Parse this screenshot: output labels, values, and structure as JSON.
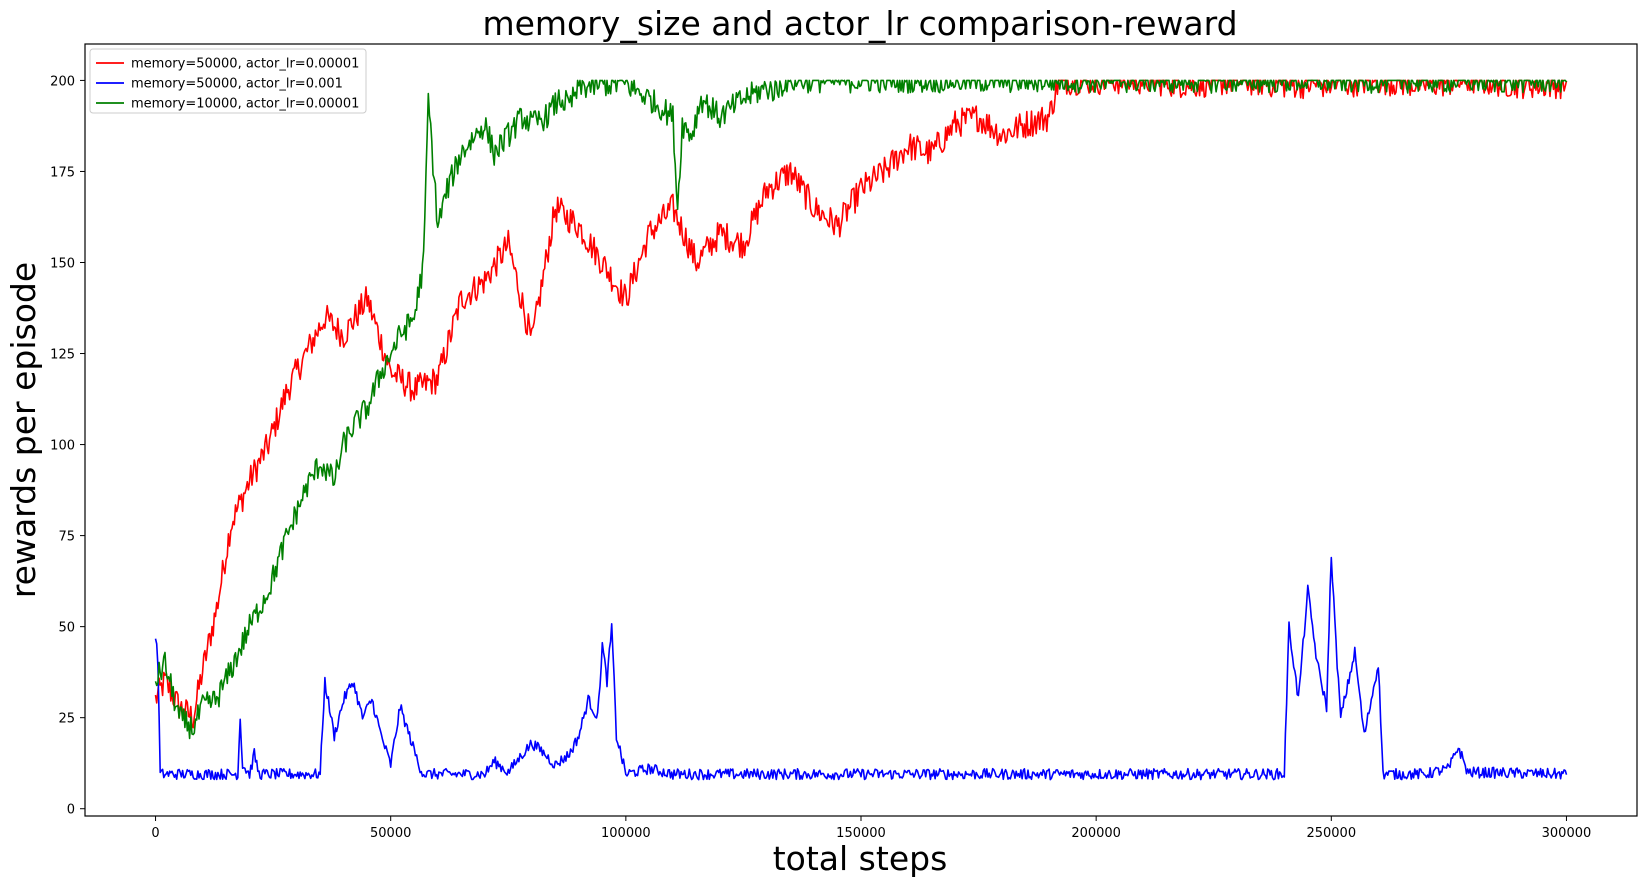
{
  "chart_data": {
    "type": "line",
    "title": "memory_size and actor_lr comparison-reward",
    "xlabel": "total steps",
    "ylabel": "rewards per episode",
    "xlim": [
      -15000,
      315000
    ],
    "ylim": [
      -2,
      210
    ],
    "x_ticks": [
      0,
      50000,
      100000,
      150000,
      200000,
      250000,
      300000
    ],
    "y_ticks": [
      0,
      25,
      50,
      75,
      100,
      125,
      150,
      175,
      200
    ],
    "grid": false,
    "legend_position": "top-left",
    "series": [
      {
        "name": "memory=50000, actor_lr=0.00001",
        "color": "#ff0000",
        "noise": 4,
        "x": [
          0,
          2000,
          5000,
          8000,
          10000,
          13000,
          16000,
          20000,
          24000,
          28000,
          32000,
          36000,
          40000,
          45000,
          50000,
          55000,
          60000,
          65000,
          70000,
          75000,
          80000,
          85000,
          90000,
          95000,
          100000,
          105000,
          110000,
          115000,
          120000,
          125000,
          130000,
          135000,
          140000,
          145000,
          150000,
          155000,
          160000,
          165000,
          170000,
          175000,
          180000,
          185000,
          190000,
          192000,
          200000,
          210000,
          220000,
          230000,
          240000,
          250000,
          260000,
          270000,
          280000,
          290000,
          300000
        ],
        "y": [
          30,
          35,
          28,
          25,
          38,
          55,
          78,
          90,
          100,
          115,
          125,
          135,
          130,
          140,
          120,
          115,
          118,
          140,
          145,
          155,
          128,
          165,
          160,
          150,
          140,
          158,
          165,
          150,
          158,
          155,
          170,
          175,
          165,
          160,
          170,
          175,
          182,
          180,
          188,
          190,
          185,
          188,
          190,
          200,
          200,
          200,
          199,
          200,
          199,
          199,
          200,
          199,
          200,
          199,
          199
        ]
      },
      {
        "name": "memory=50000, actor_lr=0.001",
        "color": "#0000ff",
        "noise": 1.5,
        "x": [
          0,
          500,
          1000,
          2000,
          17500,
          18000,
          18500,
          20000,
          21000,
          22000,
          35000,
          36000,
          38000,
          40000,
          42000,
          44000,
          46000,
          48000,
          50000,
          52000,
          54000,
          56000,
          57000,
          70000,
          72000,
          75000,
          78000,
          80000,
          82000,
          85000,
          88000,
          90000,
          92000,
          94000,
          95000,
          96000,
          97000,
          98000,
          100000,
          105000,
          110000,
          240000,
          241000,
          243000,
          245000,
          247000,
          249000,
          250000,
          251000,
          252000,
          255000,
          257000,
          260000,
          261000,
          270000,
          275000,
          277000,
          279000,
          300000
        ],
        "y": [
          48,
          40,
          9.5,
          9.5,
          9.5,
          25,
          12,
          9.5,
          15,
          9.5,
          9.5,
          35,
          20,
          30,
          35,
          25,
          30,
          20,
          12,
          28,
          20,
          12,
          9.5,
          9.5,
          13,
          10,
          15,
          18,
          16,
          12,
          15,
          20,
          30,
          25,
          45,
          35,
          50,
          20,
          9.5,
          11,
          9.5,
          9.5,
          50,
          30,
          60,
          40,
          28,
          70,
          45,
          25,
          43,
          20,
          40,
          9.5,
          9.5,
          11,
          17,
          10,
          9.5
        ]
      },
      {
        "name": "memory=10000, actor_lr=0.00001",
        "color": "#008000",
        "noise": 3.5,
        "x": [
          0,
          2000,
          5000,
          8000,
          10000,
          13000,
          16000,
          20000,
          24000,
          28000,
          32000,
          35000,
          38000,
          40000,
          42000,
          45000,
          48000,
          52000,
          55000,
          57000,
          58000,
          60000,
          62000,
          65000,
          68000,
          70000,
          72000,
          75000,
          78000,
          80000,
          83000,
          86000,
          88000,
          90000,
          95000,
          100000,
          105000,
          110000,
          111000,
          112000,
          114000,
          116000,
          120000,
          125000,
          130000,
          132000,
          134000,
          140000,
          300000
        ],
        "y": [
          35,
          40,
          25,
          22,
          28,
          30,
          38,
          50,
          60,
          75,
          88,
          95,
          90,
          100,
          105,
          110,
          120,
          130,
          135,
          150,
          195,
          160,
          170,
          180,
          185,
          188,
          180,
          185,
          190,
          188,
          190,
          195,
          193,
          198,
          199,
          199,
          195,
          190,
          165,
          188,
          185,
          195,
          190,
          195,
          198,
          197,
          200,
          200,
          200
        ]
      }
    ]
  }
}
